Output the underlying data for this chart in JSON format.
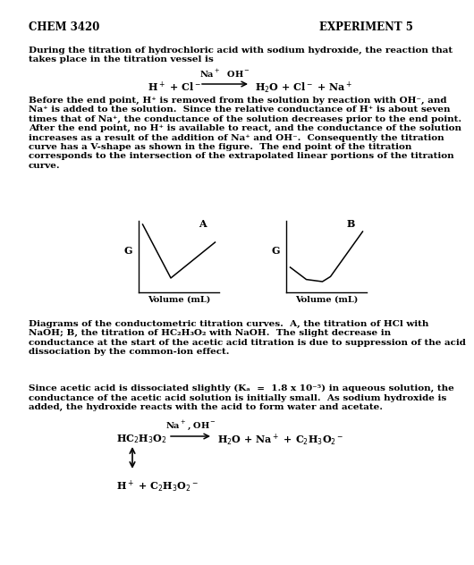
{
  "bg_color": "#ffffff",
  "text_color": "#000000",
  "header_left": "CHEM 3420",
  "header_right": "EXPERIMENT 5",
  "para1": "During the titration of hydrochloric acid with sodium hydroxide, the reaction that\ntakes place in the titration vessel is",
  "para2": "Before the end point, H⁺ is removed from the solution by reaction with OH⁻, and\nNa⁺ is added to the solution.  Since the relative conductance of H⁺ is about seven\ntimes that of Na⁺, the conductance of the solution decreases prior to the end point.\nAfter the end point, no H⁺ is available to react, and the conductance of the solution\nincreases as a result of the addition of Na⁺ and OH⁻.  Consequently the titration\ncurve has a V-shape as shown in the figure.  The end point of the titration\ncorresponds to the intersection of the extrapolated linear portions of the titration\ncurve.",
  "para3": "Diagrams of the conductometric titration curves.  A, the titration of HCl with\nNaOH; B, the titration of HC₂H₃O₂ with NaOH.  The slight decrease in\nconductance at the start of the acetic acid titration is due to suppression of the acid\ndissociation by the common-ion effect.",
  "para4": "Since acetic acid is dissociated slightly (Kₐ  =  1.8 x 10⁻⁵) in aqueous solution, the\nconductance of the acetic acid solution is initially small.  As sodium hydroxide is\nadded, the hydroxide reacts with the acid to form water and acetate.",
  "label_A": "A",
  "label_B": "B",
  "label_G": "G",
  "xlabel": "Volume (mL)"
}
